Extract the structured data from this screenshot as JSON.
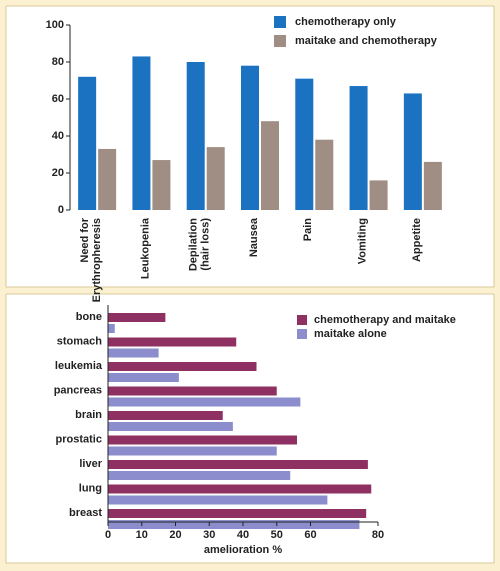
{
  "chart_data": [
    {
      "type": "bar",
      "categories": [
        [
          "Need for",
          "Erythropheresis"
        ],
        [
          "Leukopenia"
        ],
        [
          "Depilation",
          "(hair loss)"
        ],
        [
          "Nausea"
        ],
        [
          "Pain"
        ],
        [
          "Vomiting"
        ],
        [
          "Appetite"
        ]
      ],
      "series": [
        {
          "name": "chemotherapy only",
          "color": "#1a72c1",
          "values": [
            72,
            83,
            80,
            78,
            71,
            67,
            63
          ]
        },
        {
          "name": "maitake and chemotherapy",
          "color": "#a08e84",
          "values": [
            33,
            27,
            34,
            48,
            38,
            16,
            26
          ]
        }
      ],
      "ylim": [
        0,
        100
      ],
      "yticks": [
        0,
        20,
        40,
        60,
        80,
        100
      ]
    },
    {
      "type": "barh",
      "categories": [
        "bone",
        "stomach",
        "leukemia",
        "pancreas",
        "brain",
        "prostatic",
        "liver",
        "lung",
        "breast"
      ],
      "series": [
        {
          "name": "chemotherapy and maitake",
          "color": "#8f3062",
          "values": [
            17,
            38,
            44,
            50,
            34,
            56,
            77,
            78,
            76.5
          ]
        },
        {
          "name": "maitake alone",
          "color": "#8b8dcc",
          "values": [
            2,
            15,
            21,
            57,
            37,
            50,
            54,
            65,
            74.5
          ]
        }
      ],
      "x_label": "amelioration %",
      "xlim": [
        0,
        80
      ],
      "xticks": [
        0,
        10,
        20,
        30,
        40,
        50,
        60,
        80
      ]
    }
  ]
}
